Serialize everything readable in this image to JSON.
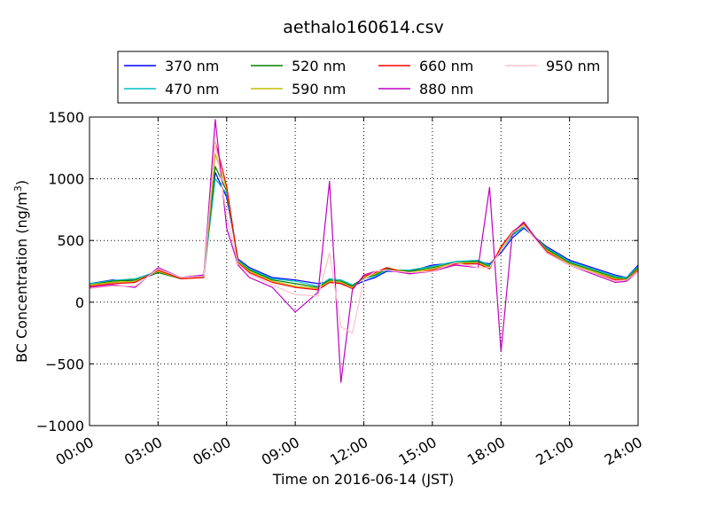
{
  "chart_data": {
    "type": "line",
    "title": "aethalo160614.csv",
    "xlabel": "Time on 2016-06-14 (JST)",
    "ylabel": "BC Concentration (ng/m³)",
    "ylabel_parts": {
      "main": "BC Concentration (ng/m",
      "sup": "3",
      "close": ")"
    },
    "xlim": [
      "00:00",
      "24:00"
    ],
    "ylim": [
      -1000,
      1500
    ],
    "x_ticks": [
      "00:00",
      "03:00",
      "06:00",
      "09:00",
      "12:00",
      "15:00",
      "18:00",
      "21:00",
      "24:00"
    ],
    "y_ticks": [
      "−1000",
      "−500",
      "0",
      "500",
      "1000",
      "1500"
    ],
    "y_tick_values": [
      -1000,
      -500,
      0,
      500,
      1000,
      1500
    ],
    "grid": true,
    "legend_position": "top, above plot",
    "x_hours": [
      0,
      1,
      2,
      3,
      4,
      5,
      5.5,
      6,
      6.5,
      7,
      8,
      9,
      10,
      10.5,
      11,
      11.5,
      12,
      12.5,
      13,
      14,
      15,
      16,
      17,
      17.5,
      18,
      18.5,
      19,
      20,
      21,
      22,
      23,
      23.5,
      24
    ],
    "series": [
      {
        "name": "370 nm",
        "color": "#0000ff",
        "values": [
          150,
          180,
          170,
          240,
          200,
          220,
          1050,
          850,
          350,
          280,
          200,
          180,
          150,
          170,
          150,
          130,
          170,
          200,
          250,
          250,
          300,
          320,
          330,
          310,
          400,
          520,
          600,
          450,
          340,
          280,
          220,
          200,
          300
        ]
      },
      {
        "name": "470 nm",
        "color": "#00bfbf",
        "values": [
          150,
          175,
          190,
          250,
          200,
          210,
          1000,
          880,
          340,
          270,
          190,
          170,
          130,
          190,
          180,
          140,
          190,
          210,
          260,
          260,
          290,
          330,
          340,
          300,
          420,
          540,
          610,
          440,
          330,
          270,
          210,
          200,
          290
        ]
      },
      {
        "name": "520 nm",
        "color": "#008000",
        "values": [
          140,
          170,
          180,
          240,
          190,
          210,
          1100,
          900,
          330,
          260,
          180,
          150,
          120,
          180,
          170,
          130,
          200,
          220,
          270,
          250,
          280,
          320,
          330,
          290,
          430,
          550,
          620,
          430,
          320,
          260,
          200,
          190,
          280
        ]
      },
      {
        "name": "590 nm",
        "color": "#bfbf00",
        "values": [
          140,
          160,
          170,
          250,
          190,
          200,
          1200,
          920,
          330,
          250,
          170,
          130,
          110,
          170,
          160,
          120,
          200,
          230,
          280,
          240,
          270,
          320,
          320,
          280,
          440,
          560,
          630,
          420,
          310,
          250,
          190,
          180,
          270
        ]
      },
      {
        "name": "660 nm",
        "color": "#ff0000",
        "values": [
          130,
          150,
          160,
          260,
          190,
          200,
          1300,
          940,
          320,
          240,
          160,
          120,
          100,
          160,
          150,
          110,
          210,
          240,
          280,
          230,
          260,
          310,
          310,
          270,
          450,
          570,
          640,
          410,
          300,
          240,
          180,
          180,
          260
        ]
      },
      {
        "name": "880 nm",
        "color": "#bf00bf",
        "values": [
          120,
          140,
          120,
          280,
          200,
          220,
          1480,
          600,
          300,
          200,
          120,
          -80,
          80,
          980,
          -650,
          100,
          220,
          250,
          260,
          230,
          250,
          300,
          280,
          930,
          -400,
          560,
          650,
          400,
          300,
          230,
          160,
          170,
          250
        ]
      },
      {
        "name": "950 nm",
        "color": "#ffc0cb",
        "values": [
          110,
          130,
          130,
          270,
          200,
          210,
          1300,
          700,
          310,
          230,
          140,
          60,
          50,
          400,
          -200,
          -250,
          180,
          250,
          260,
          240,
          250,
          320,
          280,
          280,
          420,
          560,
          620,
          400,
          300,
          240,
          170,
          180,
          250
        ]
      }
    ]
  }
}
